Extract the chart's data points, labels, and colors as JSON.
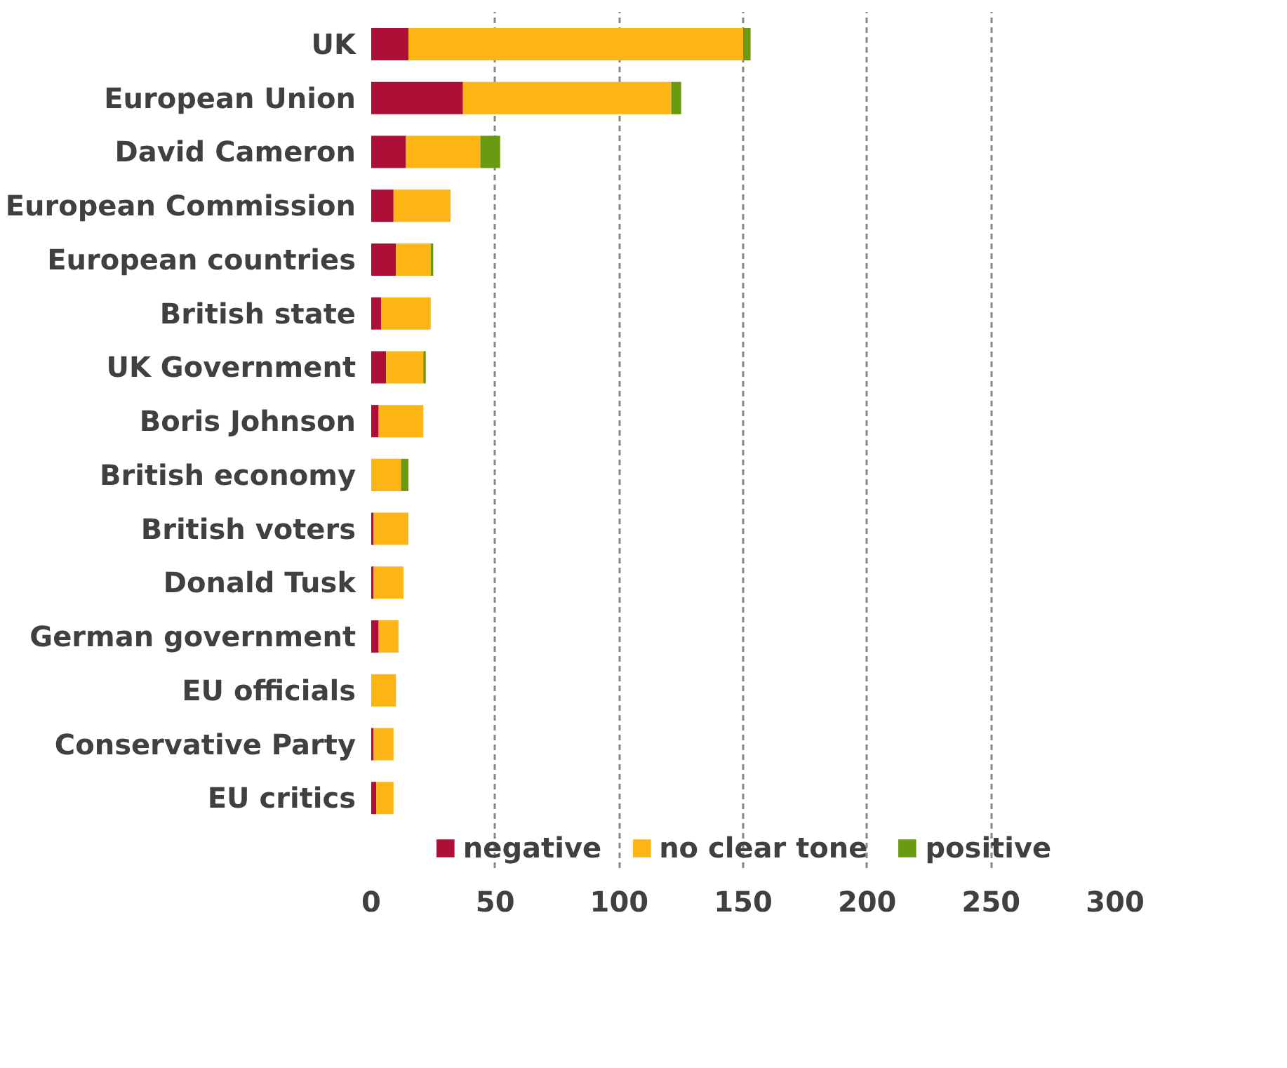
{
  "chart_data": {
    "type": "bar",
    "orientation": "horizontal",
    "stacked": true,
    "categories": [
      "UK",
      "European Union",
      "David Cameron",
      "European Commission",
      "European countries",
      "British state",
      "UK Government",
      "Boris Johnson",
      "British economy",
      "British voters",
      "Donald Tusk",
      "German government",
      "EU officials",
      "Conservative Party",
      "EU critics"
    ],
    "series": [
      {
        "name": "negative",
        "color": "#ad0f37",
        "values": [
          15,
          37,
          14,
          9,
          10,
          4,
          6,
          3,
          0,
          1,
          1,
          3,
          0,
          1,
          2
        ]
      },
      {
        "name": "no clear tone",
        "color": "#fdb515",
        "values": [
          135,
          84,
          30,
          23,
          14,
          20,
          15,
          18,
          12,
          14,
          12,
          8,
          10,
          8,
          7
        ]
      },
      {
        "name": "positive",
        "color": "#6a9a10",
        "values": [
          3,
          4,
          8,
          0,
          1,
          0,
          1,
          0,
          3,
          0,
          0,
          0,
          0,
          0,
          0
        ]
      }
    ],
    "xlim": [
      0,
      300
    ],
    "xticks": [
      0,
      50,
      100,
      150,
      200,
      250,
      300
    ],
    "grid": "x",
    "legend": "bottom"
  }
}
